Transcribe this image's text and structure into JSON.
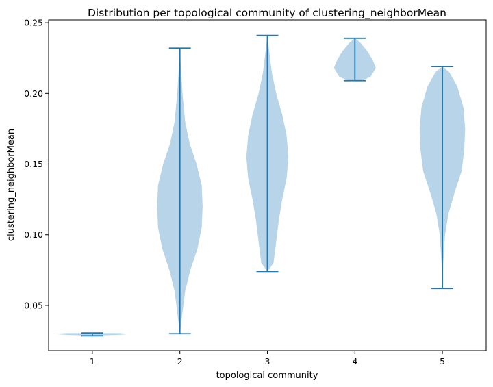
{
  "chart_data": {
    "type": "violin",
    "title": "Distribution per topological community of clustering_neighborMean",
    "xlabel": "topological community",
    "ylabel": "clustering_neighborMean",
    "categories": [
      "1",
      "2",
      "3",
      "4",
      "5"
    ],
    "yticks": [
      "0.05",
      "0.10",
      "0.15",
      "0.20",
      "0.25"
    ],
    "ylim": [
      0.018,
      0.252
    ],
    "grid": false,
    "colors": {
      "body": "#b7d4e8",
      "line": "#1f77b4"
    },
    "violins": [
      {
        "category": "1",
        "min": 0.0285,
        "max": 0.0305
      },
      {
        "category": "2",
        "min": 0.03,
        "max": 0.232
      },
      {
        "category": "3",
        "min": 0.074,
        "max": 0.241
      },
      {
        "category": "4",
        "min": 0.209,
        "max": 0.239
      },
      {
        "category": "5",
        "min": 0.062,
        "max": 0.219
      }
    ]
  }
}
